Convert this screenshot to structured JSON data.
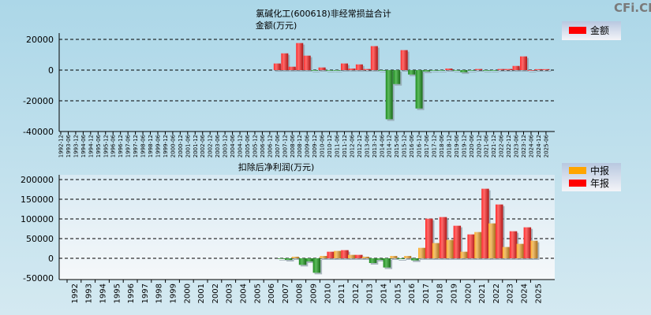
{
  "watermark": "CFi.CN",
  "chart_data": [
    {
      "type": "bar",
      "title": "氯碱化工(600618)非经常损益合计",
      "ylabel": "金额(万元)",
      "legend": [
        {
          "name": "金额",
          "color": "#ff0000"
        }
      ],
      "legend_position": "top-right",
      "ylim": [
        -40000,
        24000
      ],
      "yticks": [
        20000,
        0,
        -20000,
        -40000
      ],
      "grid": true,
      "categories": [
        "1992-12",
        "1993-06",
        "1993-12",
        "1994-06",
        "1994-12",
        "1995-06",
        "1995-12",
        "1996-06",
        "1996-12",
        "1997-06",
        "1997-12",
        "1998-06",
        "1998-12",
        "1999-06",
        "1999-12",
        "2000-06",
        "2000-12",
        "2001-06",
        "2001-12",
        "2002-06",
        "2002-12",
        "2003-06",
        "2003-12",
        "2004-06",
        "2004-12",
        "2005-06",
        "2005-12",
        "2006-06",
        "2006-12",
        "2007-06",
        "2007-12",
        "2008-06",
        "2008-12",
        "2009-06",
        "2009-12",
        "2010-06",
        "2010-12",
        "2011-06",
        "2011-12",
        "2012-06",
        "2012-12",
        "2013-06",
        "2013-12",
        "2014-06",
        "2014-12",
        "2015-06",
        "2015-12",
        "2016-06",
        "2016-12",
        "2017-06",
        "2017-12",
        "2018-06",
        "2018-12",
        "2019-06",
        "2019-12",
        "2020-06",
        "2020-12",
        "2021-06",
        "2021-12",
        "2022-06",
        "2022-12",
        "2023-06",
        "2023-12",
        "2024-06",
        "2024-12",
        "2025-06"
      ],
      "values": [
        null,
        null,
        null,
        null,
        null,
        null,
        null,
        null,
        null,
        null,
        null,
        null,
        null,
        null,
        null,
        null,
        null,
        null,
        null,
        null,
        null,
        null,
        null,
        null,
        null,
        null,
        null,
        null,
        null,
        4300,
        10900,
        2200,
        17600,
        9400,
        -300,
        1700,
        -300,
        -300,
        4300,
        1000,
        3700,
        700,
        15600,
        -200,
        -32000,
        -9100,
        13000,
        -2900,
        -25000,
        -900,
        -400,
        -400,
        1000,
        -200,
        -1400,
        -300,
        700,
        -300,
        -300,
        700,
        700,
        2700,
        8900,
        0,
        600,
        600
      ],
      "positive_color": "#ff2020",
      "negative_color": "#2a8a2a"
    },
    {
      "type": "bar",
      "title": "扣除后净利润(万元)",
      "legend": [
        {
          "name": "中报",
          "color": "#ffa500"
        },
        {
          "name": "年报",
          "color": "#ff0000"
        }
      ],
      "legend_position": "top-right",
      "ylim": [
        -50000,
        212000
      ],
      "yticks": [
        200000,
        150000,
        100000,
        50000,
        0,
        -50000
      ],
      "grid": true,
      "categories": [
        "1992",
        "1993",
        "1994",
        "1995",
        "1996",
        "1997",
        "1998",
        "1999",
        "2000",
        "2001",
        "2002",
        "2003",
        "2004",
        "2005",
        "2006",
        "2007",
        "2008",
        "2009",
        "2010",
        "2011",
        "2012",
        "2013",
        "2014",
        "2015",
        "2016",
        "2017",
        "2018",
        "2019",
        "2020",
        "2021",
        "2022",
        "2023",
        "2024",
        "2025"
      ],
      "series": [
        {
          "name": "中报",
          "values": [
            null,
            null,
            null,
            null,
            null,
            null,
            null,
            null,
            null,
            null,
            null,
            null,
            null,
            null,
            null,
            -1300,
            4000,
            -8000,
            6000,
            18700,
            8700,
            4000,
            -4000,
            6000,
            6000,
            26600,
            38700,
            46700,
            16700,
            66700,
            88700,
            28700,
            36700,
            44700
          ]
        },
        {
          "name": "年报",
          "values": [
            null,
            null,
            null,
            null,
            null,
            null,
            null,
            null,
            null,
            null,
            null,
            null,
            null,
            null,
            null,
            -4000,
            -16700,
            -36700,
            16700,
            20700,
            8700,
            -12000,
            -23300,
            -2000,
            -5300,
            100600,
            104700,
            82700,
            60700,
            176700,
            136700,
            68700,
            78700,
            null
          ]
        }
      ],
      "negative_color": "#2a8a2a"
    }
  ]
}
